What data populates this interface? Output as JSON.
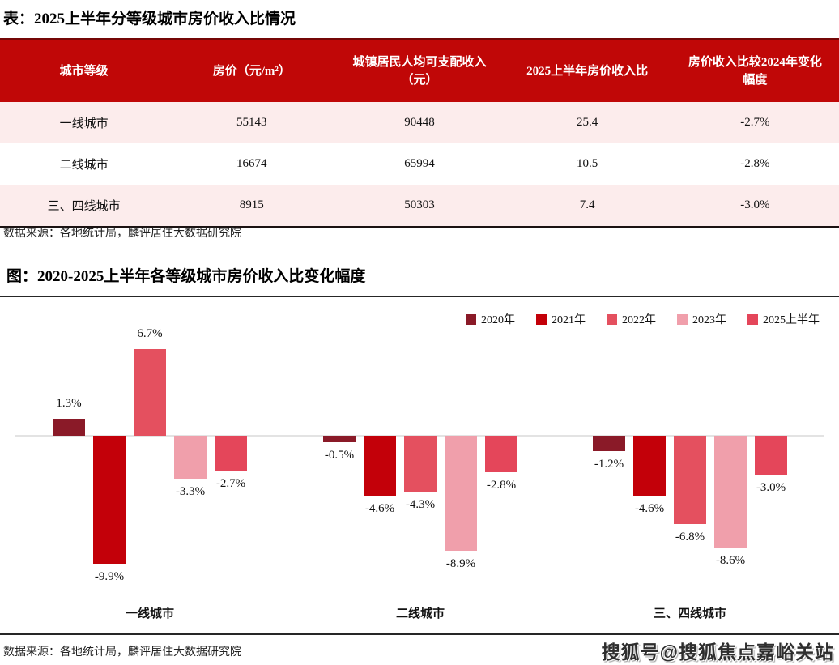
{
  "page": {
    "table_title": "表：2025上半年分等级城市房价收入比情况",
    "table_source": "数据来源：各地统计局，麟评居住大数据研究院",
    "chart_title": "图：2020-2025上半年各等级城市房价收入比变化幅度",
    "chart_source": "数据来源：各地统计局，麟评居住大数据研究院",
    "watermark": "搜狐号@搜狐焦点嘉峪关站"
  },
  "table": {
    "header_bg": "#C00707",
    "row_alt_bg": "#FCECEC",
    "headers": [
      "城市等级",
      "房价（元/m²）",
      "城镇居民人均可支配收入（元）",
      "2025上半年房价收入比",
      "房价收入比较2024年变化幅度"
    ],
    "rows": [
      [
        "一线城市",
        "55143",
        "90448",
        "25.4",
        "-2.7%"
      ],
      [
        "二线城市",
        "16674",
        "65994",
        "10.5",
        "-2.8%"
      ],
      [
        "三、四线城市",
        "8915",
        "50303",
        "7.4",
        "-3.0%"
      ]
    ]
  },
  "chart_data": {
    "type": "bar",
    "title": "2020-2025上半年各等级城市房价收入比变化幅度",
    "unit": "%",
    "categories": [
      "一线城市",
      "二线城市",
      "三、四线城市"
    ],
    "series": [
      {
        "name": "2020年",
        "color": "#8A1A28",
        "values": [
          1.3,
          -0.5,
          -1.2
        ]
      },
      {
        "name": "2021年",
        "color": "#C30009",
        "values": [
          -9.9,
          -4.6,
          -4.6
        ]
      },
      {
        "name": "2022年",
        "color": "#E4505F",
        "values": [
          6.7,
          -4.3,
          -6.8
        ]
      },
      {
        "name": "2023年",
        "color": "#F09FAB",
        "values": [
          -3.3,
          -8.9,
          -8.6
        ]
      },
      {
        "name": "2025上半年",
        "color": "#E4465A",
        "values": [
          -2.7,
          -2.8,
          -3.0
        ]
      }
    ],
    "ylim": [
      -10.5,
      7.5
    ],
    "grid": false,
    "legend_position": "top-right",
    "value_labels": true,
    "baseline": 0
  }
}
